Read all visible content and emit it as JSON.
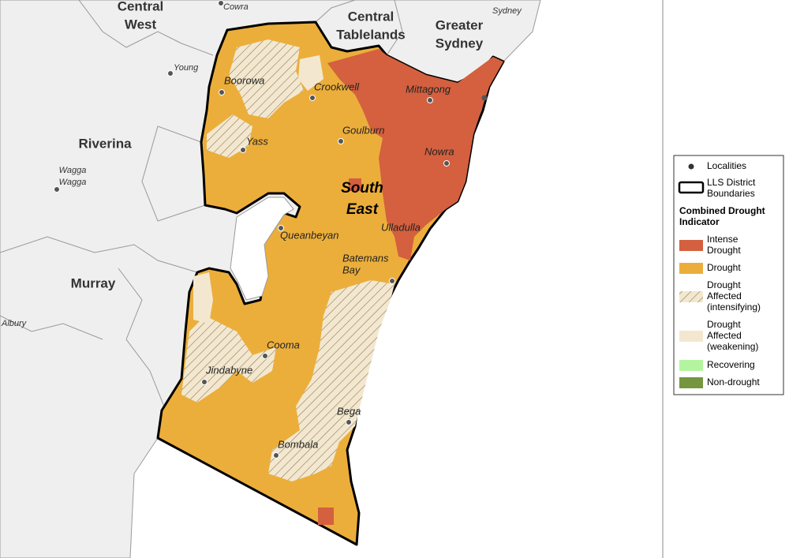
{
  "regions": [
    {
      "lines": [
        "Central",
        "West"
      ]
    },
    {
      "lines": [
        "Central",
        "Tablelands"
      ]
    },
    {
      "lines": [
        "Greater",
        "Sydney"
      ]
    },
    {
      "lines": [
        "Riverina"
      ]
    },
    {
      "lines": [
        "Murray"
      ]
    },
    {
      "lines": [
        "South",
        "East"
      ]
    }
  ],
  "localities": [
    {
      "lines": [
        "Cowra"
      ]
    },
    {
      "lines": [
        "Sydney"
      ]
    },
    {
      "lines": [
        "Young"
      ]
    },
    {
      "lines": [
        "Wagga",
        "Wagga"
      ]
    },
    {
      "lines": [
        "Albury"
      ]
    },
    {
      "lines": [
        "Boorowa"
      ]
    },
    {
      "lines": [
        "Crookwell"
      ]
    },
    {
      "lines": [
        "Mittagong"
      ]
    },
    {
      "lines": [
        "Goulburn"
      ]
    },
    {
      "lines": [
        "Yass"
      ]
    },
    {
      "lines": [
        "Nowra"
      ]
    },
    {
      "lines": [
        "Queanbeyan"
      ]
    },
    {
      "lines": [
        "Ulladulla"
      ]
    },
    {
      "lines": [
        "Batemans",
        "Bay"
      ]
    },
    {
      "lines": [
        "Cooma"
      ]
    },
    {
      "lines": [
        "Jindabyne"
      ]
    },
    {
      "lines": [
        "Bega"
      ]
    },
    {
      "lines": [
        "Bombala"
      ]
    }
  ],
  "legend": {
    "localities": "Localities",
    "boundaries": [
      "LLS District",
      "Boundaries"
    ],
    "title": [
      "Combined Drought",
      "Indicator"
    ],
    "items": [
      {
        "lines": [
          "Intense",
          "Drought"
        ]
      },
      {
        "lines": [
          "Drought"
        ]
      },
      {
        "lines": [
          "Drought",
          "Affected",
          "(intensifying)"
        ]
      },
      {
        "lines": [
          "Drought",
          "Affected",
          "(weakening)"
        ]
      },
      {
        "lines": [
          "Recovering"
        ]
      },
      {
        "lines": [
          "Non-drought"
        ]
      }
    ]
  }
}
